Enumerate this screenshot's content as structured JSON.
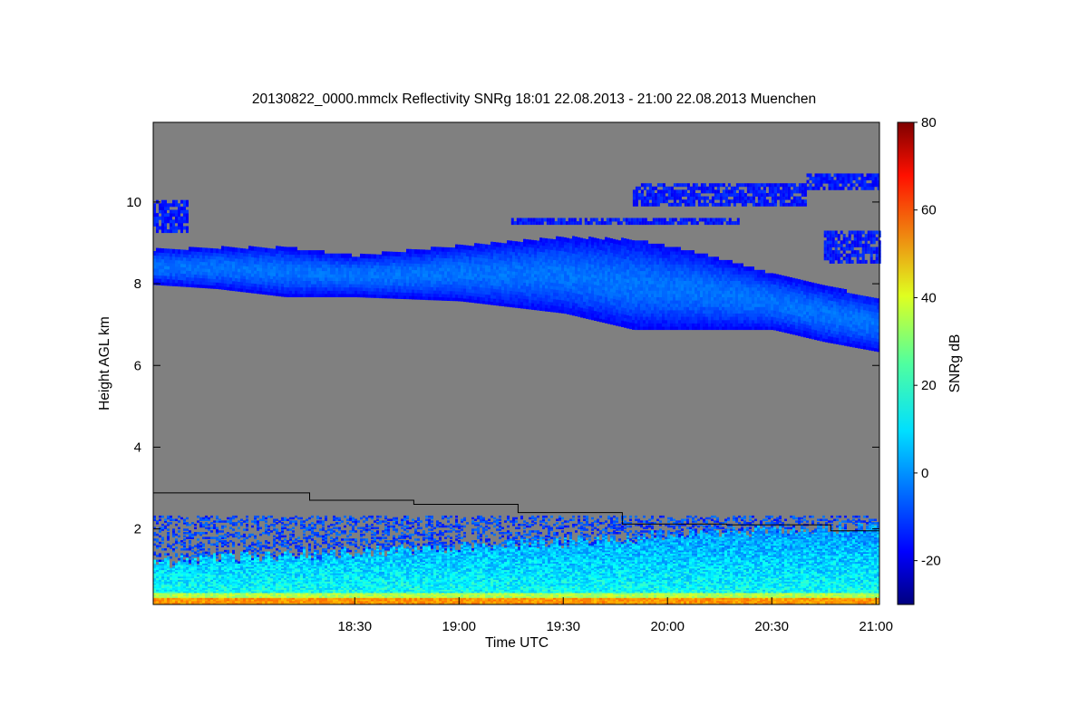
{
  "chart_data": {
    "type": "heatmap",
    "title": "20130822_0000.mmclx Reflectivity SNRg   18:01 22.08.2013 - 21:00 22.08.2013 Muenchen",
    "xlabel": "Time UTC",
    "ylabel": "Height AGL km",
    "colorbar_label": "SNRg dB",
    "x_ticks": [
      "18:30",
      "19:00",
      "19:30",
      "20:00",
      "20:30",
      "21:00"
    ],
    "x_tick_minutes": [
      30,
      60,
      90,
      120,
      150,
      180
    ],
    "xlim_minutes": [
      -28,
      181
    ],
    "y_ticks": [
      "2",
      "4",
      "6",
      "8",
      "10"
    ],
    "y_tick_values": [
      2,
      4,
      6,
      8,
      10
    ],
    "ylim_km": [
      0.15,
      11.95
    ],
    "colorbar_ticks": [
      "-20",
      "0",
      "20",
      "40",
      "60",
      "80"
    ],
    "colorbar_tick_values": [
      -20,
      0,
      20,
      40,
      60,
      80
    ],
    "colorbar_range": [
      -30,
      80
    ],
    "background_color": "#808080",
    "colormap": "jet",
    "cloud_layer": {
      "time_minutes": [
        -28,
        -10,
        10,
        30,
        60,
        90,
        110,
        130,
        150,
        165,
        181
      ],
      "base_km": [
        8.0,
        7.9,
        7.7,
        7.7,
        7.6,
        7.3,
        6.9,
        6.9,
        6.9,
        6.6,
        6.35
      ],
      "top_km": [
        8.8,
        8.85,
        8.85,
        8.65,
        8.9,
        9.1,
        9.05,
        8.7,
        8.2,
        7.9,
        7.6
      ]
    },
    "black_line": {
      "time_minutes": [
        -28,
        17,
        17,
        47,
        47,
        77,
        77,
        107,
        107,
        137,
        137,
        167,
        167,
        181
      ],
      "height_km": [
        2.88,
        2.88,
        2.7,
        2.7,
        2.6,
        2.6,
        2.4,
        2.4,
        2.12,
        2.12,
        2.1,
        2.1,
        1.95,
        1.95
      ]
    }
  }
}
